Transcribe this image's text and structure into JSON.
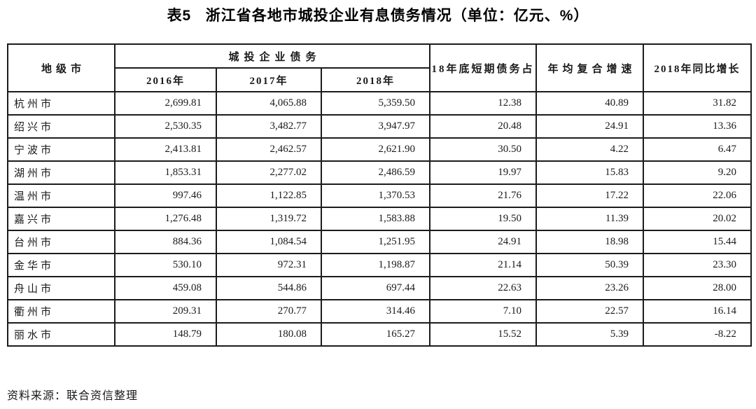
{
  "title": "表5   浙江省各地市城投企业有息债务情况（单位：亿元、%）",
  "table": {
    "header": {
      "city": "地级市",
      "debt_group": "城投企业债务",
      "year_2016": "2016年",
      "year_2017": "2017年",
      "year_2018": "2018年",
      "short_term": "18年底短期债务占",
      "cagr": "年均复合增速",
      "yoy": "2018年同比增长"
    },
    "rows": [
      {
        "city": "杭州市",
        "y2016": "2,699.81",
        "y2017": "4,065.88",
        "y2018": "5,359.50",
        "short_term": "12.38",
        "cagr": "40.89",
        "yoy": "31.82"
      },
      {
        "city": "绍兴市",
        "y2016": "2,530.35",
        "y2017": "3,482.77",
        "y2018": "3,947.97",
        "short_term": "20.48",
        "cagr": "24.91",
        "yoy": "13.36"
      },
      {
        "city": "宁波市",
        "y2016": "2,413.81",
        "y2017": "2,462.57",
        "y2018": "2,621.90",
        "short_term": "30.50",
        "cagr": "4.22",
        "yoy": "6.47"
      },
      {
        "city": "湖州市",
        "y2016": "1,853.31",
        "y2017": "2,277.02",
        "y2018": "2,486.59",
        "short_term": "19.97",
        "cagr": "15.83",
        "yoy": "9.20"
      },
      {
        "city": "温州市",
        "y2016": "997.46",
        "y2017": "1,122.85",
        "y2018": "1,370.53",
        "short_term": "21.76",
        "cagr": "17.22",
        "yoy": "22.06"
      },
      {
        "city": "嘉兴市",
        "y2016": "1,276.48",
        "y2017": "1,319.72",
        "y2018": "1,583.88",
        "short_term": "19.50",
        "cagr": "11.39",
        "yoy": "20.02"
      },
      {
        "city": "台州市",
        "y2016": "884.36",
        "y2017": "1,084.54",
        "y2018": "1,251.95",
        "short_term": "24.91",
        "cagr": "18.98",
        "yoy": "15.44"
      },
      {
        "city": "金华市",
        "y2016": "530.10",
        "y2017": "972.31",
        "y2018": "1,198.87",
        "short_term": "21.14",
        "cagr": "50.39",
        "yoy": "23.30"
      },
      {
        "city": "舟山市",
        "y2016": "459.08",
        "y2017": "544.86",
        "y2018": "697.44",
        "short_term": "22.63",
        "cagr": "23.26",
        "yoy": "28.00"
      },
      {
        "city": "衢州市",
        "y2016": "209.31",
        "y2017": "270.77",
        "y2018": "314.46",
        "short_term": "7.10",
        "cagr": "22.57",
        "yoy": "16.14"
      },
      {
        "city": "丽水市",
        "y2016": "148.79",
        "y2017": "180.08",
        "y2018": "165.27",
        "short_term": "15.52",
        "cagr": "5.39",
        "yoy": "-8.22"
      }
    ]
  },
  "source_note": "资料来源：联合资信整理"
}
